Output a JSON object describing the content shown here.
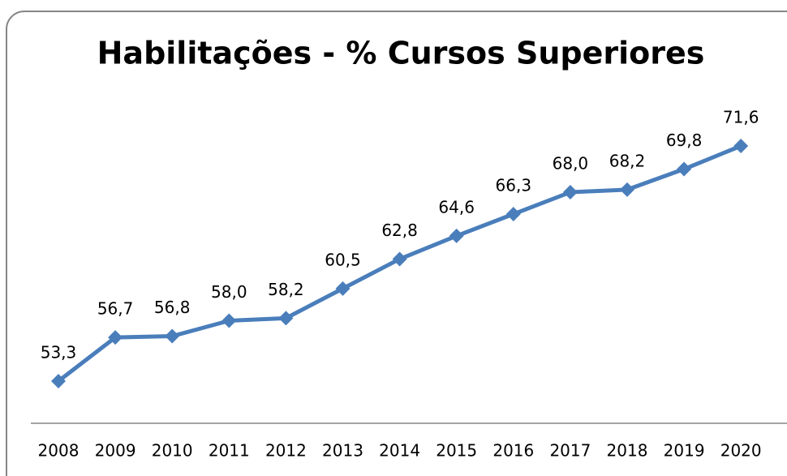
{
  "chart_data": {
    "type": "line",
    "title": "Habilitações - % Cursos Superiores",
    "categories": [
      "2008",
      "2009",
      "2010",
      "2011",
      "2012",
      "2013",
      "2014",
      "2015",
      "2016",
      "2017",
      "2018",
      "2019",
      "2020"
    ],
    "series": [
      {
        "color": "#4a7ebb",
        "values": [
          53.3,
          56.7,
          56.8,
          58.0,
          58.2,
          60.5,
          62.8,
          64.6,
          66.3,
          68.0,
          68.2,
          69.8,
          71.6
        ],
        "value_labels": [
          "53,3",
          "56,7",
          "56,8",
          "58,0",
          "58,2",
          "60,5",
          "62,8",
          "64,6",
          "66,3",
          "68,0",
          "68,2",
          "69,8",
          "71,6"
        ]
      }
    ]
  }
}
